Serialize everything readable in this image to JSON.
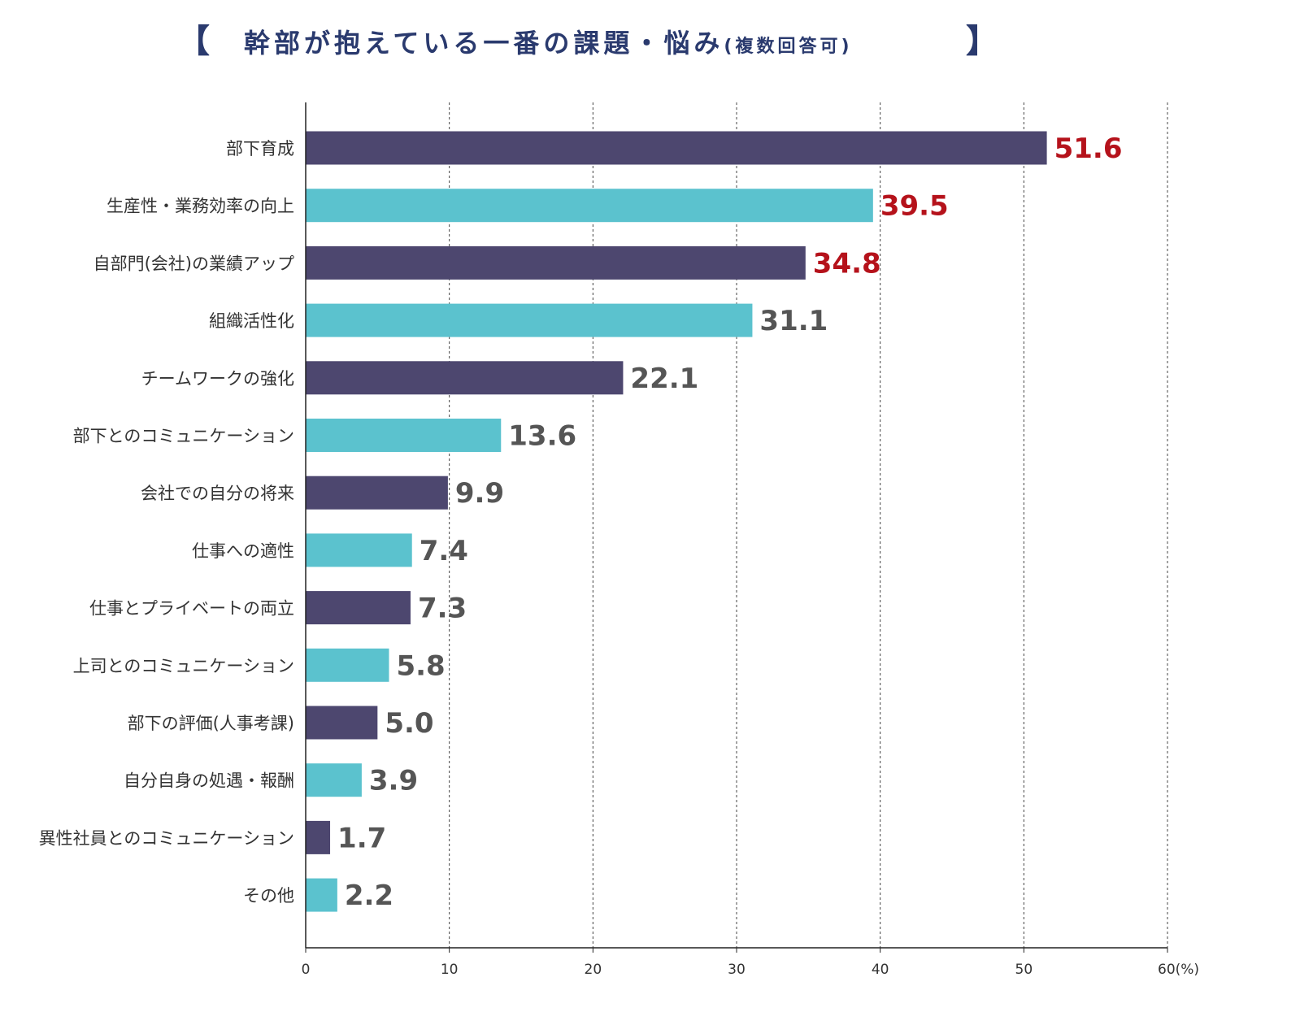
{
  "title": {
    "open_bracket": "【",
    "main": "幹部が抱えている一番の課題・悩み",
    "sub": "(複数回答可)",
    "close_bracket": "】"
  },
  "colors": {
    "title": "#2a3a6e",
    "bar_dark": "#4d476f",
    "bar_light": "#5bc2ce",
    "value_highlight": "#b5121b",
    "value_normal": "#555555"
  },
  "chart_data": {
    "type": "bar",
    "orientation": "horizontal",
    "title": "幹部が抱えている一番の課題・悩み(複数回答可)",
    "xlabel": "(%)",
    "ylabel": "",
    "xlim": [
      0,
      60
    ],
    "ticks": [
      0,
      10,
      20,
      30,
      40,
      50,
      60
    ],
    "tick_labels": [
      "0",
      "10",
      "20",
      "30",
      "40",
      "50",
      "60(%)"
    ],
    "grid": true,
    "categories": [
      "部下育成",
      "生産性・業務効率の向上",
      "自部門(会社)の業績アップ",
      "組織活性化",
      "チームワークの強化",
      "部下とのコミュニケーション",
      "会社での自分の将来",
      "仕事への適性",
      "仕事とプライベートの両立",
      "上司とのコミュニケーション",
      "部下の評価(人事考課)",
      "自分自身の処遇・報酬",
      "異性社員とのコミュニケーション",
      "その他"
    ],
    "values": [
      51.6,
      39.5,
      34.8,
      31.1,
      22.1,
      13.6,
      9.9,
      7.4,
      7.3,
      5.8,
      5.0,
      3.9,
      1.7,
      2.2
    ],
    "value_labels": [
      "51.6",
      "39.5",
      "34.8",
      "31.1",
      "22.1",
      "13.6",
      "9.9",
      "7.4",
      "7.3",
      "5.8",
      "5.0",
      "3.9",
      "1.7",
      "2.2"
    ],
    "highlight_top": 3
  }
}
